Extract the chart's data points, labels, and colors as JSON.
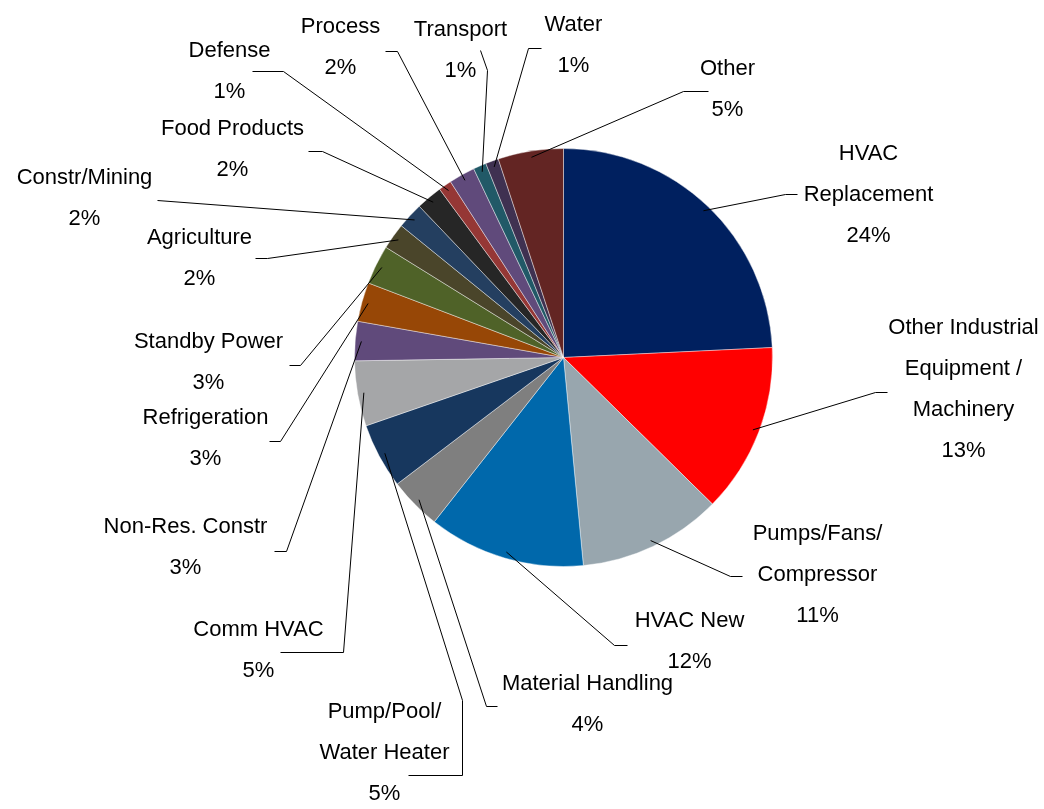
{
  "chart_data": {
    "type": "pie",
    "categories": [
      "HVAC Replacement",
      "Other Industrial Equipment / Machinery",
      "Pumps/Fans/Compressor",
      "HVAC New",
      "Material Handling",
      "Pump/Pool/Water Heater",
      "Comm HVAC",
      "Non-Res. Constr",
      "Refrigeration",
      "Standby Power",
      "Agriculture",
      "Constr/Mining",
      "Food Products",
      "Defense",
      "Process",
      "Transport",
      "Water",
      "Other"
    ],
    "values": [
      24,
      13,
      11,
      12,
      4,
      5,
      5,
      3,
      3,
      3,
      2,
      2,
      2,
      1,
      2,
      1,
      1,
      5
    ],
    "value_labels": [
      "24%",
      "13%",
      "11%",
      "12%",
      "4%",
      "5%",
      "5%",
      "3%",
      "3%",
      "3%",
      "2%",
      "2%",
      "2%",
      "1%",
      "2%",
      "1%",
      "1%",
      "5%"
    ],
    "colors": [
      "#00205f",
      "#ff0000",
      "#98a6ae",
      "#0068ab",
      "#7f7f7f",
      "#17375e",
      "#a5a6a8",
      "#604a7b",
      "#974706",
      "#4f6228",
      "#4a452a",
      "#243f60",
      "#262626",
      "#953735",
      "#604a7b",
      "#215967",
      "#3f3151",
      "#632523"
    ]
  }
}
